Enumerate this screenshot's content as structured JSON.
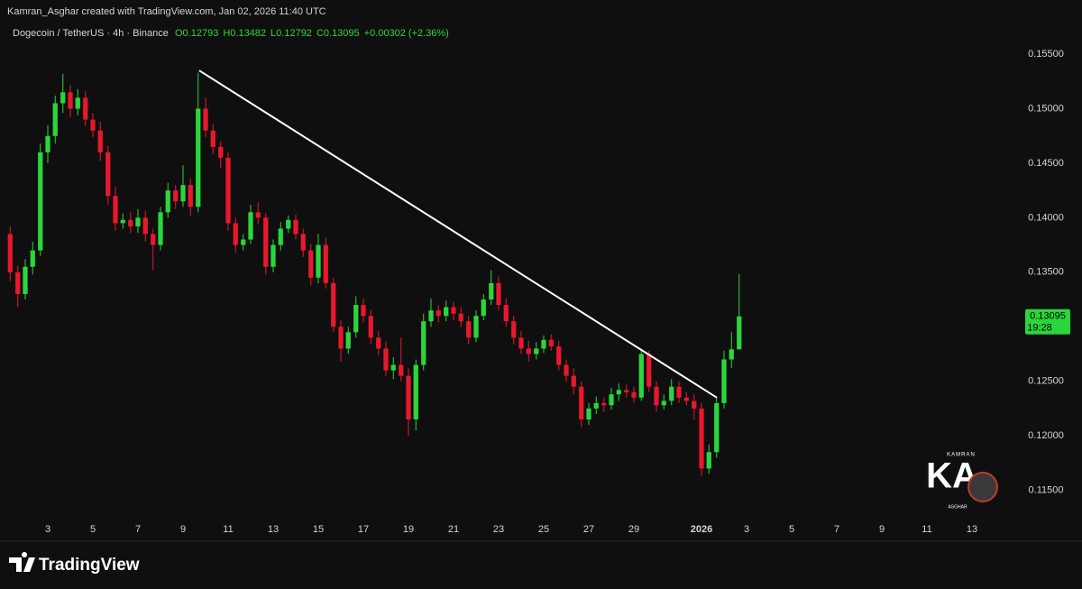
{
  "chart_data": {
    "type": "candlestick",
    "caption": "Kamran_Asghar created with TradingView.com, Jan 02, 2026 11:40 UTC",
    "symbol": "Dogecoin / TetherUS · 4h · Binance",
    "ohlc_text": [
      "O0.12793",
      "H0.13482",
      "L0.12792",
      "C0.13095"
    ],
    "change_text": "+0.00302 (+2.36%)",
    "up_color": "#2bd63c",
    "down_color": "#e8182d",
    "x": [
      0.33,
      0.67,
      1,
      1.33,
      1.67,
      2,
      2.33,
      2.67,
      3,
      3.33,
      3.67,
      4,
      4.33,
      4.67,
      5,
      5.33,
      5.67,
      6,
      6.33,
      6.67,
      7,
      7.33,
      7.67,
      8,
      8.33,
      8.67,
      9,
      9.33,
      9.67,
      10,
      10.33,
      10.67,
      11,
      11.33,
      11.67,
      12,
      12.33,
      12.67,
      13,
      13.33,
      13.67,
      14,
      14.33,
      14.67,
      15,
      15.33,
      15.67,
      16,
      16.33,
      16.67,
      17,
      17.33,
      17.67,
      18,
      18.33,
      18.67,
      19,
      19.33,
      19.67,
      20,
      20.33,
      20.67,
      21,
      21.33,
      21.67,
      22,
      22.33,
      22.67,
      23,
      23.33,
      23.67,
      24,
      24.33,
      24.67,
      25,
      25.33,
      25.67,
      26,
      26.33,
      26.67,
      27,
      27.33,
      27.67,
      28,
      28.33,
      28.67,
      29,
      29.33,
      29.67,
      30,
      30.33,
      30.67,
      31,
      31.33,
      31.67,
      32,
      32.33,
      32.67
    ],
    "open": [
      0.1385,
      0.135,
      0.133,
      0.1355,
      0.137,
      0.146,
      0.1475,
      0.1505,
      0.1515,
      0.15,
      0.151,
      0.149,
      0.148,
      0.146,
      0.142,
      0.1395,
      0.1398,
      0.1392,
      0.14,
      0.1385,
      0.1375,
      0.1405,
      0.1425,
      0.1415,
      0.143,
      0.141,
      0.15,
      0.148,
      0.1465,
      0.1455,
      0.1395,
      0.1375,
      0.138,
      0.1405,
      0.14,
      0.1355,
      0.1375,
      0.139,
      0.1398,
      0.1385,
      0.137,
      0.1345,
      0.1375,
      0.134,
      0.13,
      0.128,
      0.1295,
      0.132,
      0.131,
      0.129,
      0.128,
      0.126,
      0.1265,
      0.1255,
      0.1215,
      0.1265,
      0.1305,
      0.1315,
      0.131,
      0.1318,
      0.1312,
      0.1305,
      0.129,
      0.131,
      0.1325,
      0.134,
      0.132,
      0.1305,
      0.129,
      0.128,
      0.1275,
      0.128,
      0.1288,
      0.1282,
      0.1265,
      0.1255,
      0.1245,
      0.1215,
      0.1225,
      0.123,
      0.1228,
      0.1238,
      0.1242,
      0.124,
      0.1235,
      0.1275,
      0.1245,
      0.1228,
      0.1232,
      0.1245,
      0.1235,
      0.1232,
      0.1225,
      0.117,
      0.1185,
      0.123,
      0.127,
      0.12793
    ],
    "high": [
      0.1392,
      0.1356,
      0.1362,
      0.1378,
      0.1468,
      0.1485,
      0.1512,
      0.1532,
      0.1522,
      0.1518,
      0.1516,
      0.1496,
      0.1488,
      0.1466,
      0.1428,
      0.1404,
      0.1405,
      0.1408,
      0.1406,
      0.139,
      0.141,
      0.1432,
      0.143,
      0.1448,
      0.1436,
      0.1533,
      0.151,
      0.1486,
      0.147,
      0.146,
      0.14,
      0.1385,
      0.1412,
      0.1414,
      0.1404,
      0.138,
      0.1396,
      0.1402,
      0.1403,
      0.139,
      0.1376,
      0.1385,
      0.1382,
      0.1345,
      0.1306,
      0.13,
      0.1328,
      0.1326,
      0.1316,
      0.1296,
      0.1286,
      0.1272,
      0.129,
      0.1262,
      0.127,
      0.1312,
      0.1326,
      0.132,
      0.1324,
      0.1323,
      0.1318,
      0.131,
      0.1315,
      0.133,
      0.1352,
      0.1346,
      0.1326,
      0.131,
      0.1296,
      0.1287,
      0.1286,
      0.1292,
      0.1293,
      0.1287,
      0.127,
      0.1262,
      0.125,
      0.123,
      0.1236,
      0.1235,
      0.1244,
      0.1248,
      0.1247,
      0.1245,
      0.128,
      0.1278,
      0.125,
      0.1238,
      0.1252,
      0.125,
      0.124,
      0.1238,
      0.123,
      0.1192,
      0.1235,
      0.1278,
      0.1295,
      0.13482
    ],
    "low": [
      0.1342,
      0.1318,
      0.1325,
      0.1348,
      0.1365,
      0.145,
      0.1468,
      0.1496,
      0.1492,
      0.1494,
      0.1484,
      0.1474,
      0.1452,
      0.1412,
      0.1388,
      0.139,
      0.1386,
      0.1386,
      0.1378,
      0.1352,
      0.137,
      0.14,
      0.1408,
      0.141,
      0.1402,
      0.1405,
      0.1474,
      0.1458,
      0.1446,
      0.1388,
      0.1368,
      0.137,
      0.1376,
      0.1394,
      0.1348,
      0.135,
      0.137,
      0.1386,
      0.138,
      0.1364,
      0.1338,
      0.134,
      0.1335,
      0.1295,
      0.1268,
      0.1275,
      0.129,
      0.1304,
      0.1284,
      0.1274,
      0.1255,
      0.1252,
      0.125,
      0.12,
      0.1205,
      0.126,
      0.13,
      0.1304,
      0.1305,
      0.1306,
      0.13,
      0.1284,
      0.1286,
      0.1306,
      0.132,
      0.1315,
      0.13,
      0.1284,
      0.1275,
      0.1268,
      0.127,
      0.1276,
      0.1278,
      0.126,
      0.125,
      0.1238,
      0.1208,
      0.121,
      0.122,
      0.1222,
      0.1224,
      0.1232,
      0.1235,
      0.123,
      0.1232,
      0.124,
      0.1222,
      0.1224,
      0.1228,
      0.123,
      0.1228,
      0.1215,
      0.1163,
      0.1165,
      0.118,
      0.1225,
      0.1262,
      0.12792
    ],
    "close": [
      0.135,
      0.133,
      0.1355,
      0.137,
      0.146,
      0.1475,
      0.1505,
      0.1515,
      0.15,
      0.151,
      0.149,
      0.148,
      0.146,
      0.142,
      0.1395,
      0.1398,
      0.1392,
      0.14,
      0.1385,
      0.1375,
      0.1405,
      0.1425,
      0.1415,
      0.143,
      0.141,
      0.15,
      0.148,
      0.1465,
      0.1455,
      0.1395,
      0.1375,
      0.138,
      0.1405,
      0.14,
      0.1355,
      0.1375,
      0.139,
      0.1398,
      0.1385,
      0.137,
      0.1345,
      0.1375,
      0.134,
      0.13,
      0.128,
      0.1295,
      0.132,
      0.131,
      0.129,
      0.128,
      0.126,
      0.1265,
      0.1255,
      0.1215,
      0.1265,
      0.1305,
      0.1315,
      0.131,
      0.1318,
      0.1312,
      0.1305,
      0.129,
      0.131,
      0.1325,
      0.134,
      0.132,
      0.1305,
      0.129,
      0.128,
      0.1275,
      0.128,
      0.1288,
      0.1282,
      0.1265,
      0.1255,
      0.1245,
      0.1215,
      0.1225,
      0.123,
      0.1228,
      0.1238,
      0.1242,
      0.124,
      0.1235,
      0.1275,
      0.1245,
      0.1228,
      0.1232,
      0.1245,
      0.1235,
      0.1232,
      0.1225,
      0.117,
      0.1185,
      0.123,
      0.127,
      0.12793,
      0.13095
    ],
    "trendline": {
      "x": [
        8.72,
        31.68
      ],
      "y": [
        0.1535,
        0.1235
      ],
      "color": "#ffffff"
    },
    "last_price": 0.13095,
    "countdown": "19:28",
    "xlim": [
      -0.12,
      45.28
    ],
    "ylim": [
      0.1124,
      0.1579
    ],
    "xticks": [
      {
        "value": 2,
        "label": "3"
      },
      {
        "value": 4,
        "label": "5"
      },
      {
        "value": 6,
        "label": "7"
      },
      {
        "value": 8,
        "label": "9"
      },
      {
        "value": 10,
        "label": "11"
      },
      {
        "value": 12,
        "label": "13"
      },
      {
        "value": 14,
        "label": "15"
      },
      {
        "value": 16,
        "label": "17"
      },
      {
        "value": 18,
        "label": "19"
      },
      {
        "value": 20,
        "label": "21"
      },
      {
        "value": 22,
        "label": "23"
      },
      {
        "value": 24,
        "label": "25"
      },
      {
        "value": 26,
        "label": "27"
      },
      {
        "value": 28,
        "label": "29"
      },
      {
        "value": 31,
        "label": "2026"
      },
      {
        "value": 33,
        "label": "3"
      },
      {
        "value": 35,
        "label": "5"
      },
      {
        "value": 37,
        "label": "7"
      },
      {
        "value": 39,
        "label": "9"
      },
      {
        "value": 41,
        "label": "11"
      },
      {
        "value": 43,
        "label": "13"
      }
    ],
    "yticks": [
      {
        "value": 0.115,
        "label": "0.11500"
      },
      {
        "value": 0.12,
        "label": "0.12000"
      },
      {
        "value": 0.125,
        "label": "0.12500"
      },
      {
        "value": 0.13,
        "label": "0.13000"
      },
      {
        "value": 0.135,
        "label": "0.13500"
      },
      {
        "value": 0.14,
        "label": "0.14000"
      },
      {
        "value": 0.145,
        "label": "0.14500"
      },
      {
        "value": 0.15,
        "label": "0.15000"
      },
      {
        "value": 0.155,
        "label": "0.15500"
      }
    ],
    "watermark": [
      "KAMRAN",
      "KA",
      "ASGHAR"
    ],
    "brand": "TradingView"
  }
}
